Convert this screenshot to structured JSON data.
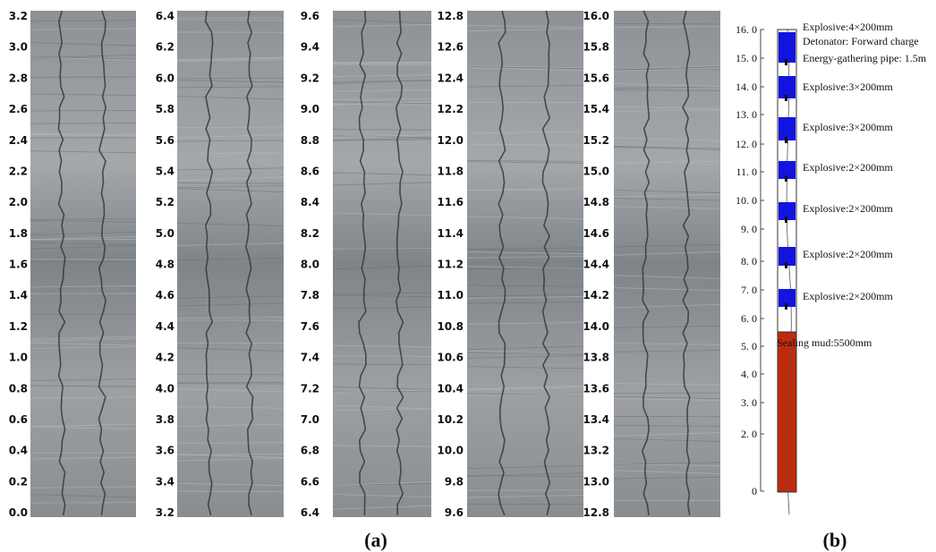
{
  "panel_a": {
    "caption": "(a)",
    "strips": [
      {
        "labels": [
          "3.2",
          "3.0",
          "2.8",
          "2.6",
          "2.4",
          "2.2",
          "2.0",
          "1.8",
          "1.6",
          "1.4",
          "1.2",
          "1.0",
          "0.8",
          "0.6",
          "0.4",
          "0.2",
          "0.0"
        ]
      },
      {
        "labels": [
          "6.4",
          "6.2",
          "6.0",
          "5.8",
          "5.6",
          "5.4",
          "5.2",
          "5.0",
          "4.8",
          "4.6",
          "4.4",
          "4.2",
          "4.0",
          "3.8",
          "3.6",
          "3.4",
          "3.2"
        ]
      },
      {
        "labels": [
          "9.6",
          "9.4",
          "9.2",
          "9.0",
          "8.8",
          "8.6",
          "8.4",
          "8.2",
          "8.0",
          "7.8",
          "7.6",
          "7.4",
          "7.2",
          "7.0",
          "6.8",
          "6.6",
          "6.4"
        ]
      },
      {
        "labels": [
          "12.8",
          "12.6",
          "12.4",
          "12.2",
          "12.0",
          "11.8",
          "11.6",
          "11.4",
          "11.2",
          "11.0",
          "10.8",
          "10.6",
          "10.4",
          "10.2",
          "10.0",
          "9.8",
          "9.6"
        ]
      },
      {
        "labels": [
          "16.0",
          "15.8",
          "15.6",
          "15.4",
          "15.2",
          "15.0",
          "14.8",
          "14.6",
          "14.4",
          "14.2",
          "14.0",
          "13.8",
          "13.6",
          "13.4",
          "13.2",
          "13.0",
          "12.8"
        ]
      }
    ]
  },
  "panel_b": {
    "caption": "(b)",
    "scale_labels": [
      "16. 0",
      "15. 0",
      "14. 0",
      "13. 0",
      "12. 0",
      "11. 0",
      "10. 0",
      "9. 0",
      "8. 0",
      "7. 0",
      "6. 0",
      "5. 0",
      "4. 0",
      "3. 0",
      "2. 0",
      "0"
    ],
    "annotations": [
      "Explosive:4×200mm",
      "Detonator: Forward charge",
      "Energy-gathering pipe: 1.5m",
      "Explosive:3×200mm",
      "Explosive:3×200mm",
      "Explosive:2×200mm",
      "Explosive:2×200mm",
      "Explosive:2×200mm",
      "Explosive:2×200mm"
    ],
    "sealing_label": "Sealing mud:5500mm"
  }
}
